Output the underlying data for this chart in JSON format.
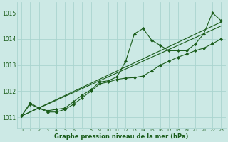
{
  "title": "Graphe pression niveau de la mer (hPa)",
  "background_color": "#cce9e5",
  "grid_color": "#aad4cf",
  "line_color": "#1a5c1a",
  "xlim": [
    -0.5,
    23.5
  ],
  "ylim": [
    1010.6,
    1015.4
  ],
  "yticks": [
    1011,
    1012,
    1013,
    1014,
    1015
  ],
  "xticks": [
    0,
    1,
    2,
    3,
    4,
    5,
    6,
    7,
    8,
    9,
    10,
    11,
    12,
    13,
    14,
    15,
    16,
    17,
    18,
    19,
    20,
    21,
    22,
    23
  ],
  "series1_x": [
    0,
    1,
    2,
    3,
    4,
    5,
    6,
    7,
    8,
    9,
    10,
    11,
    12,
    13,
    14,
    15,
    16,
    17,
    18,
    19,
    20,
    21,
    22,
    23
  ],
  "series1_y": [
    1011.05,
    1011.55,
    1011.35,
    1011.25,
    1011.3,
    1011.35,
    1011.6,
    1011.85,
    1012.05,
    1012.35,
    1012.4,
    1012.55,
    1013.15,
    1014.2,
    1014.4,
    1013.95,
    1013.75,
    1013.55,
    1013.55,
    1013.55,
    1013.8,
    1014.2,
    1015.0,
    1014.7
  ],
  "series2_x": [
    0,
    1,
    2,
    3,
    4,
    5,
    6,
    7,
    8,
    9,
    10,
    11,
    12,
    13,
    14,
    15,
    16,
    17,
    18,
    19,
    20,
    21,
    22,
    23
  ],
  "series2_y": [
    1011.05,
    1011.5,
    1011.35,
    1011.2,
    1011.2,
    1011.3,
    1011.5,
    1011.75,
    1012.0,
    1012.28,
    1012.35,
    1012.45,
    1012.5,
    1012.52,
    1012.58,
    1012.78,
    1013.0,
    1013.15,
    1013.3,
    1013.42,
    1013.55,
    1013.65,
    1013.82,
    1014.0
  ],
  "series3_x": [
    0,
    23
  ],
  "series3_y": [
    1011.05,
    1014.65
  ],
  "series4_x": [
    0,
    23
  ],
  "series4_y": [
    1011.05,
    1014.5
  ]
}
